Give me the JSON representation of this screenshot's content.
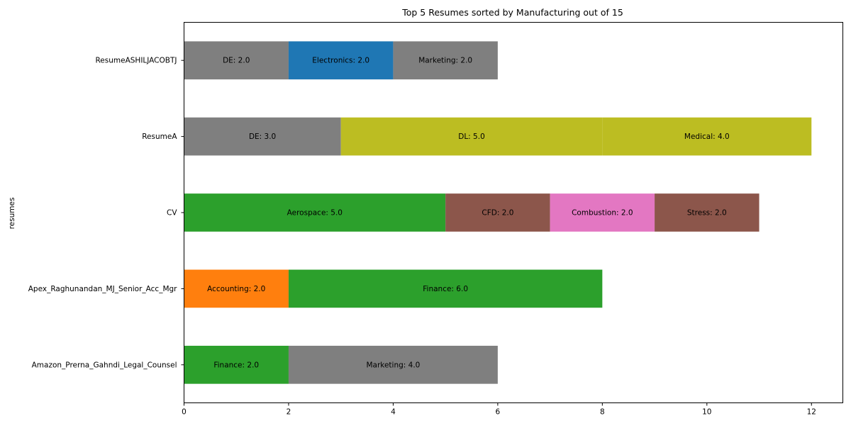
{
  "chart_data": {
    "type": "bar",
    "orientation": "horizontal",
    "stacked": true,
    "title": "Top 5 Resumes sorted by Manufacturing out of 15",
    "ylabel": "resumes",
    "xlabel": "",
    "xlim": [
      0,
      12.6
    ],
    "xticks": [
      0,
      2,
      4,
      6,
      8,
      10,
      12
    ],
    "grid": false,
    "legend": "none",
    "categories": [
      "ResumeASHILJACOBTJ",
      "ResumeA",
      "CV",
      "Apex_Raghunandan_MJ_Senior_Acc_Mgr",
      "Amazon_Prerna_Gahndi_Legal_Counsel"
    ],
    "rows": [
      {
        "category": "ResumeASHILJACOBTJ",
        "segments": [
          {
            "label": "DE: 2.0",
            "value": 2.0,
            "color": "#7f7f7f"
          },
          {
            "label": "Electronics: 2.0",
            "value": 2.0,
            "color": "#1f77b4"
          },
          {
            "label": "Marketing: 2.0",
            "value": 2.0,
            "color": "#7f7f7f"
          }
        ]
      },
      {
        "category": "ResumeA",
        "segments": [
          {
            "label": "DE: 3.0",
            "value": 3.0,
            "color": "#7f7f7f"
          },
          {
            "label": "DL: 5.0",
            "value": 5.0,
            "color": "#bcbd22"
          },
          {
            "label": "Medical: 4.0",
            "value": 4.0,
            "color": "#bcbd22"
          }
        ]
      },
      {
        "category": "CV",
        "segments": [
          {
            "label": "Aerospace: 5.0",
            "value": 5.0,
            "color": "#2ca02c"
          },
          {
            "label": "CFD: 2.0",
            "value": 2.0,
            "color": "#8c564b"
          },
          {
            "label": "Combustion: 2.0",
            "value": 2.0,
            "color": "#e377c2"
          },
          {
            "label": "Stress: 2.0",
            "value": 2.0,
            "color": "#8c564b"
          }
        ]
      },
      {
        "category": "Apex_Raghunandan_MJ_Senior_Acc_Mgr",
        "segments": [
          {
            "label": "Accounting: 2.0",
            "value": 2.0,
            "color": "#ff7f0e"
          },
          {
            "label": "Finance: 6.0",
            "value": 6.0,
            "color": "#2ca02c"
          }
        ]
      },
      {
        "category": "Amazon_Prerna_Gahndi_Legal_Counsel",
        "segments": [
          {
            "label": "Finance: 2.0",
            "value": 2.0,
            "color": "#2ca02c"
          },
          {
            "label": "Marketing: 4.0",
            "value": 4.0,
            "color": "#7f7f7f"
          }
        ]
      }
    ]
  }
}
